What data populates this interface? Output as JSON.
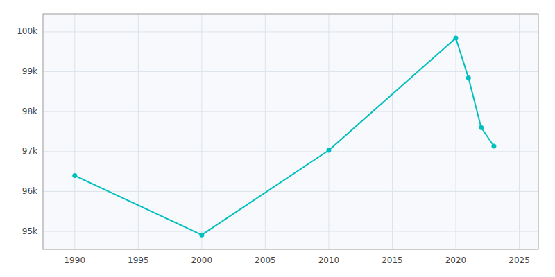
{
  "chart_data": {
    "type": "line",
    "x": [
      1990,
      2000,
      2010,
      2020,
      2021,
      2022,
      2023
    ],
    "values": [
      96397,
      94911,
      97032,
      99843,
      98843,
      97600,
      97135
    ],
    "color": "#00BFBF",
    "marker": "circle",
    "xlim": [
      1987.5,
      2026.5
    ],
    "xticks": [
      1990,
      1995,
      2000,
      2005,
      2010,
      2015,
      2020,
      2025
    ],
    "ylim": [
      94550,
      100450
    ],
    "yticks": [
      {
        "value": 95000,
        "label": "95k"
      },
      {
        "value": 96000,
        "label": "96k"
      },
      {
        "value": 97000,
        "label": "97k"
      },
      {
        "value": 98000,
        "label": "98k"
      },
      {
        "value": 99000,
        "label": "99k"
      },
      {
        "value": 100000,
        "label": "100k"
      }
    ],
    "grid": true
  }
}
